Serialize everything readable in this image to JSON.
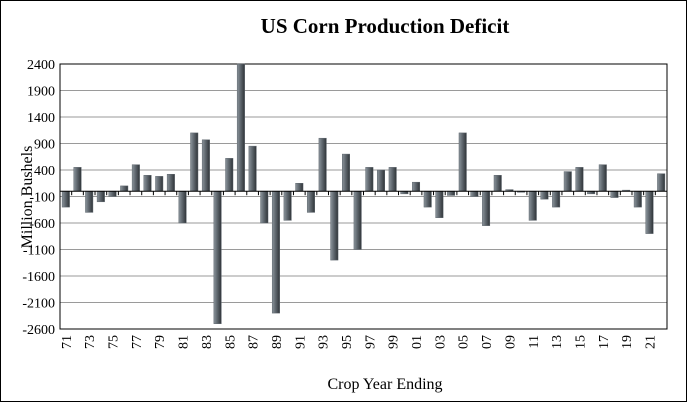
{
  "chart_data": {
    "type": "bar",
    "title": "US Corn Production Deficit",
    "x_label": "Crop Year Ending",
    "y_label": "Million Bushels",
    "categories": [
      "71",
      null,
      "73",
      null,
      "75",
      null,
      "77",
      null,
      "79",
      null,
      "81",
      null,
      "83",
      null,
      "85",
      null,
      "87",
      null,
      "89",
      null,
      "91",
      null,
      "93",
      null,
      "95",
      null,
      "97",
      null,
      "99",
      null,
      "01",
      null,
      "03",
      null,
      "05",
      null,
      "07",
      null,
      "09",
      null,
      "11",
      null,
      "13",
      null,
      "15",
      null,
      "17",
      null,
      "19",
      null,
      "21",
      null
    ],
    "values": [
      -300,
      450,
      -400,
      -200,
      -100,
      100,
      500,
      300,
      280,
      320,
      -600,
      1100,
      970,
      -2500,
      620,
      2400,
      850,
      -600,
      -2300,
      -550,
      150,
      -400,
      1000,
      -1300,
      700,
      -1100,
      450,
      400,
      450,
      -50,
      170,
      -300,
      -500,
      -80,
      1100,
      -100,
      -650,
      300,
      30,
      -20,
      -550,
      -150,
      -300,
      370,
      450,
      -50,
      500,
      -120,
      20,
      -300,
      -800,
      330
    ],
    "color": "#5f676e",
    "ylim": [
      -2600,
      2400
    ],
    "yticks": [
      -2600,
      -2100,
      -1600,
      -1100,
      -600,
      -100,
      400,
      900,
      1400,
      1900,
      2400
    ],
    "grid": true
  }
}
